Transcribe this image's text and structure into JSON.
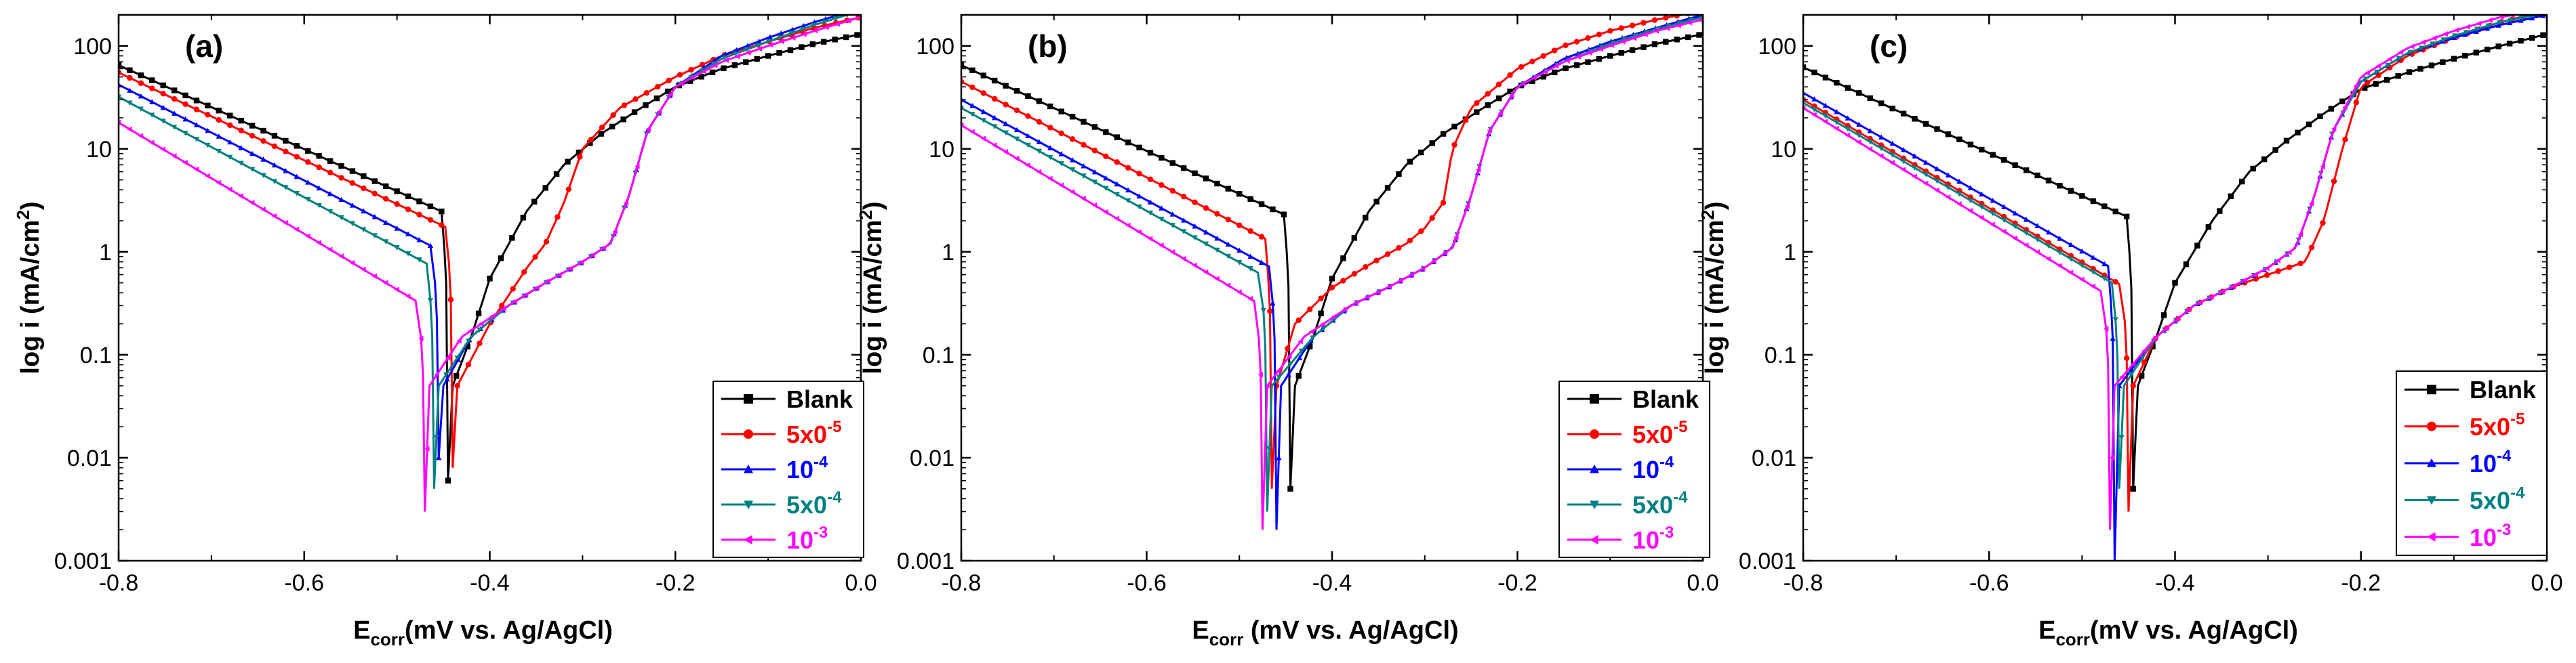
{
  "chart_data": [
    {
      "type": "line",
      "panel_label": "(a)",
      "xlabel_main": "E",
      "xlabel_sub": "corr",
      "xlabel_rest": "(mV vs. Ag/AgCl)",
      "ylabel": "log i (mA/cm",
      "ylabel_sup": "2",
      "ylabel_end": ")",
      "xlim": [
        -0.8,
        0.0
      ],
      "ylim": [
        0.001,
        200
      ],
      "yscale": "log",
      "x_ticks": [
        "-0.8",
        "-0.6",
        "-0.4",
        "-0.2",
        "0.0"
      ],
      "y_ticks": [
        "0.001",
        "0.01",
        "0.1",
        "1",
        "10",
        "100"
      ],
      "legend_position": "bottom-right",
      "series": [
        {
          "name": "Blank",
          "name_sup": "",
          "color": "#000000",
          "marker": "square",
          "ecorr": -0.445,
          "imin": 0.006,
          "ic_at_m08": 65,
          "ic_slope": 0.245,
          "ia": [
            [
              -0.44,
              0.05
            ],
            [
              -0.42,
              0.15
            ],
            [
              -0.4,
              0.55
            ],
            [
              -0.36,
              2.5
            ],
            [
              -0.32,
              7
            ],
            [
              -0.28,
              14
            ],
            [
              -0.24,
              24
            ],
            [
              -0.2,
              40
            ],
            [
              -0.15,
              60
            ],
            [
              -0.1,
              80
            ],
            [
              -0.05,
              105
            ],
            [
              0.0,
              130
            ]
          ]
        },
        {
          "name": "5x0",
          "name_sup": "-5",
          "color": "#ff0000",
          "marker": "circle",
          "ecorr": -0.44,
          "imin": 0.008,
          "ic_at_m08": 55,
          "ic_slope": 0.235,
          "ia": [
            [
              -0.435,
              0.05
            ],
            [
              -0.4,
              0.2
            ],
            [
              -0.36,
              0.7
            ],
            [
              -0.34,
              1.2
            ],
            [
              -0.32,
              3
            ],
            [
              -0.3,
              10
            ],
            [
              -0.26,
              25
            ],
            [
              -0.2,
              50
            ],
            [
              -0.15,
              80
            ],
            [
              -0.1,
              110
            ],
            [
              -0.05,
              150
            ],
            [
              0.0,
              190
            ]
          ]
        },
        {
          "name": "10",
          "name_sup": "-4",
          "color": "#0000ff",
          "marker": "triangle-up",
          "ecorr": -0.455,
          "imin": 0.01,
          "ic_at_m08": 42,
          "ic_slope": 0.215,
          "ia": [
            [
              -0.45,
              0.05
            ],
            [
              -0.42,
              0.15
            ],
            [
              -0.38,
              0.3
            ],
            [
              -0.34,
              0.5
            ],
            [
              -0.3,
              0.8
            ],
            [
              -0.27,
              1.2
            ],
            [
              -0.25,
              3.5
            ],
            [
              -0.23,
              15
            ],
            [
              -0.2,
              40
            ],
            [
              -0.15,
              80
            ],
            [
              -0.1,
              120
            ],
            [
              -0.05,
              170
            ],
            [
              0.0,
              230
            ]
          ]
        },
        {
          "name": "5x0",
          "name_sup": "-4",
          "color": "#008080",
          "marker": "triangle-down",
          "ecorr": -0.46,
          "imin": 0.005,
          "ic_at_m08": 32,
          "ic_slope": 0.205,
          "ia": [
            [
              -0.455,
              0.05
            ],
            [
              -0.42,
              0.15
            ],
            [
              -0.38,
              0.3
            ],
            [
              -0.34,
              0.5
            ],
            [
              -0.3,
              0.8
            ],
            [
              -0.27,
              1.2
            ],
            [
              -0.25,
              3.5
            ],
            [
              -0.23,
              15
            ],
            [
              -0.2,
              40
            ],
            [
              -0.15,
              75
            ],
            [
              -0.1,
              110
            ],
            [
              -0.05,
              160
            ],
            [
              0.0,
              220
            ]
          ]
        },
        {
          "name": "10",
          "name_sup": "-3",
          "color": "#ff00ff",
          "marker": "triangle-left",
          "ecorr": -0.47,
          "imin": 0.003,
          "ic_at_m08": 18,
          "ic_slope": 0.185,
          "ia": [
            [
              -0.465,
              0.05
            ],
            [
              -0.43,
              0.15
            ],
            [
              -0.38,
              0.3
            ],
            [
              -0.34,
              0.5
            ],
            [
              -0.3,
              0.8
            ],
            [
              -0.27,
              1.2
            ],
            [
              -0.25,
              3.5
            ],
            [
              -0.23,
              15
            ],
            [
              -0.2,
              40
            ],
            [
              -0.15,
              70
            ],
            [
              -0.1,
              100
            ],
            [
              -0.05,
              140
            ],
            [
              0.0,
              190
            ]
          ]
        }
      ]
    },
    {
      "type": "line",
      "panel_label": "(b)",
      "xlabel_main": "E",
      "xlabel_sub": "corr",
      "xlabel_rest": " (mV vs. Ag/AgCl)",
      "ylabel": "log i (mA/cm",
      "ylabel_sup": "2",
      "ylabel_end": ")",
      "xlim": [
        -0.8,
        0.0
      ],
      "ylim": [
        0.001,
        200
      ],
      "yscale": "log",
      "x_ticks": [
        "-0.8",
        "-0.6",
        "-0.4",
        "-0.2",
        "0.0"
      ],
      "y_ticks": [
        "0.001",
        "0.01",
        "0.1",
        "1",
        "10",
        "100"
      ],
      "legend_position": "bottom-right",
      "series": [
        {
          "name": "Blank",
          "name_sup": "",
          "color": "#000000",
          "marker": "square",
          "ecorr": -0.445,
          "imin": 0.005,
          "ic_at_m08": 65,
          "ic_slope": 0.24,
          "ia": [
            [
              -0.44,
              0.05
            ],
            [
              -0.42,
              0.15
            ],
            [
              -0.4,
              0.55
            ],
            [
              -0.36,
              2.5
            ],
            [
              -0.32,
              7
            ],
            [
              -0.28,
              14
            ],
            [
              -0.24,
              24
            ],
            [
              -0.2,
              40
            ],
            [
              -0.15,
              60
            ],
            [
              -0.1,
              80
            ],
            [
              -0.05,
              105
            ],
            [
              0.0,
              130
            ]
          ]
        },
        {
          "name": "5x0",
          "name_sup": "-5",
          "color": "#ff0000",
          "marker": "circle",
          "ecorr": -0.465,
          "imin": 0.005,
          "ic_at_m08": 45,
          "ic_slope": 0.215,
          "ia": [
            [
              -0.46,
              0.05
            ],
            [
              -0.44,
              0.2
            ],
            [
              -0.4,
              0.45
            ],
            [
              -0.36,
              0.75
            ],
            [
              -0.32,
              1.2
            ],
            [
              -0.3,
              1.7
            ],
            [
              -0.28,
              3
            ],
            [
              -0.27,
              10
            ],
            [
              -0.25,
              25
            ],
            [
              -0.2,
              60
            ],
            [
              -0.15,
              100
            ],
            [
              -0.1,
              140
            ],
            [
              -0.05,
              180
            ],
            [
              0.0,
              220
            ]
          ]
        },
        {
          "name": "10",
          "name_sup": "-4",
          "color": "#0000ff",
          "marker": "triangle-up",
          "ecorr": -0.46,
          "imin": 0.002,
          "ic_at_m08": 30,
          "ic_slope": 0.205,
          "ia": [
            [
              -0.455,
              0.05
            ],
            [
              -0.42,
              0.15
            ],
            [
              -0.38,
              0.3
            ],
            [
              -0.34,
              0.45
            ],
            [
              -0.3,
              0.7
            ],
            [
              -0.27,
              1.1
            ],
            [
              -0.25,
              3.5
            ],
            [
              -0.23,
              15
            ],
            [
              -0.2,
              40
            ],
            [
              -0.15,
              75
            ],
            [
              -0.1,
              110
            ],
            [
              -0.05,
              150
            ],
            [
              0.0,
              200
            ]
          ]
        },
        {
          "name": "5x0",
          "name_sup": "-4",
          "color": "#008080",
          "marker": "triangle-down",
          "ecorr": -0.47,
          "imin": 0.003,
          "ic_at_m08": 25,
          "ic_slope": 0.2,
          "ia": [
            [
              -0.465,
              0.05
            ],
            [
              -0.42,
              0.15
            ],
            [
              -0.38,
              0.3
            ],
            [
              -0.34,
              0.45
            ],
            [
              -0.3,
              0.7
            ],
            [
              -0.27,
              1.1
            ],
            [
              -0.25,
              3.5
            ],
            [
              -0.23,
              15
            ],
            [
              -0.2,
              40
            ],
            [
              -0.15,
              70
            ],
            [
              -0.1,
              105
            ],
            [
              -0.05,
              145
            ],
            [
              0.0,
              190
            ]
          ]
        },
        {
          "name": "10",
          "name_sup": "-3",
          "color": "#ff00ff",
          "marker": "triangle-left",
          "ecorr": -0.475,
          "imin": 0.002,
          "ic_at_m08": 17,
          "ic_slope": 0.185,
          "ia": [
            [
              -0.47,
              0.05
            ],
            [
              -0.43,
              0.15
            ],
            [
              -0.38,
              0.3
            ],
            [
              -0.34,
              0.45
            ],
            [
              -0.3,
              0.7
            ],
            [
              -0.27,
              1.1
            ],
            [
              -0.25,
              3.5
            ],
            [
              -0.23,
              15
            ],
            [
              -0.2,
              40
            ],
            [
              -0.15,
              70
            ],
            [
              -0.1,
              100
            ],
            [
              -0.05,
              140
            ],
            [
              0.0,
              180
            ]
          ]
        }
      ]
    },
    {
      "type": "line",
      "panel_label": "(c)",
      "xlabel_main": "E",
      "xlabel_sub": "corr",
      "xlabel_rest": "(mV vs. Ag/AgCl)",
      "ylabel": "log i (mA/cm",
      "ylabel_sup": "2",
      "ylabel_end": ")",
      "xlim": [
        -0.8,
        0.0
      ],
      "ylim": [
        0.001,
        200
      ],
      "yscale": "log",
      "x_ticks": [
        "-0.8",
        "-0.6",
        "-0.4",
        "-0.2",
        "0.0"
      ],
      "y_ticks": [
        "0.001",
        "0.01",
        "0.1",
        "1",
        "10",
        "100"
      ],
      "legend_position": "bottom-right",
      "series": [
        {
          "name": "Blank",
          "name_sup": "",
          "color": "#000000",
          "marker": "square",
          "ecorr": -0.445,
          "imin": 0.005,
          "ic_at_m08": 62,
          "ic_slope": 0.24,
          "ia": [
            [
              -0.44,
              0.05
            ],
            [
              -0.42,
              0.15
            ],
            [
              -0.4,
              0.5
            ],
            [
              -0.36,
              2
            ],
            [
              -0.32,
              6
            ],
            [
              -0.28,
              12
            ],
            [
              -0.24,
              22
            ],
            [
              -0.2,
              38
            ],
            [
              -0.15,
              55
            ],
            [
              -0.1,
              75
            ],
            [
              -0.05,
              100
            ],
            [
              0.0,
              130
            ]
          ]
        },
        {
          "name": "5x0",
          "name_sup": "-5",
          "color": "#ff0000",
          "marker": "circle",
          "ecorr": -0.45,
          "imin": 0.003,
          "ic_at_m08": 30,
          "ic_slope": 0.19,
          "ia": [
            [
              -0.445,
              0.05
            ],
            [
              -0.42,
              0.15
            ],
            [
              -0.38,
              0.3
            ],
            [
              -0.34,
              0.45
            ],
            [
              -0.3,
              0.6
            ],
            [
              -0.26,
              0.8
            ],
            [
              -0.24,
              2
            ],
            [
              -0.22,
              10
            ],
            [
              -0.2,
              40
            ],
            [
              -0.15,
              80
            ],
            [
              -0.1,
              120
            ],
            [
              -0.05,
              170
            ],
            [
              0.0,
              220
            ]
          ]
        },
        {
          "name": "10",
          "name_sup": "-4",
          "color": "#0000ff",
          "marker": "triangle-up",
          "ecorr": -0.465,
          "imin": 0.001,
          "ic_at_m08": 35,
          "ic_slope": 0.195,
          "ia": [
            [
              -0.46,
              0.05
            ],
            [
              -0.42,
              0.15
            ],
            [
              -0.38,
              0.3
            ],
            [
              -0.34,
              0.45
            ],
            [
              -0.3,
              0.7
            ],
            [
              -0.27,
              1.1
            ],
            [
              -0.25,
              3.5
            ],
            [
              -0.23,
              15
            ],
            [
              -0.2,
              45
            ],
            [
              -0.15,
              85
            ],
            [
              -0.1,
              120
            ],
            [
              -0.05,
              160
            ],
            [
              0.0,
              200
            ]
          ]
        },
        {
          "name": "5x0",
          "name_sup": "-4",
          "color": "#008080",
          "marker": "triangle-down",
          "ecorr": -0.46,
          "imin": 0.005,
          "ic_at_m08": 28,
          "ic_slope": 0.19,
          "ia": [
            [
              -0.455,
              0.05
            ],
            [
              -0.42,
              0.15
            ],
            [
              -0.38,
              0.3
            ],
            [
              -0.34,
              0.45
            ],
            [
              -0.3,
              0.7
            ],
            [
              -0.27,
              1.1
            ],
            [
              -0.25,
              3.5
            ],
            [
              -0.23,
              15
            ],
            [
              -0.2,
              45
            ],
            [
              -0.15,
              85
            ],
            [
              -0.1,
              125
            ],
            [
              -0.05,
              170
            ],
            [
              0.0,
              210
            ]
          ]
        },
        {
          "name": "10",
          "name_sup": "-3",
          "color": "#ff00ff",
          "marker": "triangle-left",
          "ecorr": -0.47,
          "imin": 0.002,
          "ic_at_m08": 25,
          "ic_slope": 0.18,
          "ia": [
            [
              -0.465,
              0.05
            ],
            [
              -0.42,
              0.15
            ],
            [
              -0.38,
              0.3
            ],
            [
              -0.34,
              0.45
            ],
            [
              -0.3,
              0.7
            ],
            [
              -0.27,
              1.1
            ],
            [
              -0.25,
              3.5
            ],
            [
              -0.23,
              15
            ],
            [
              -0.2,
              50
            ],
            [
              -0.15,
              95
            ],
            [
              -0.1,
              140
            ],
            [
              -0.05,
              190
            ],
            [
              0.0,
              230
            ]
          ]
        }
      ]
    }
  ]
}
